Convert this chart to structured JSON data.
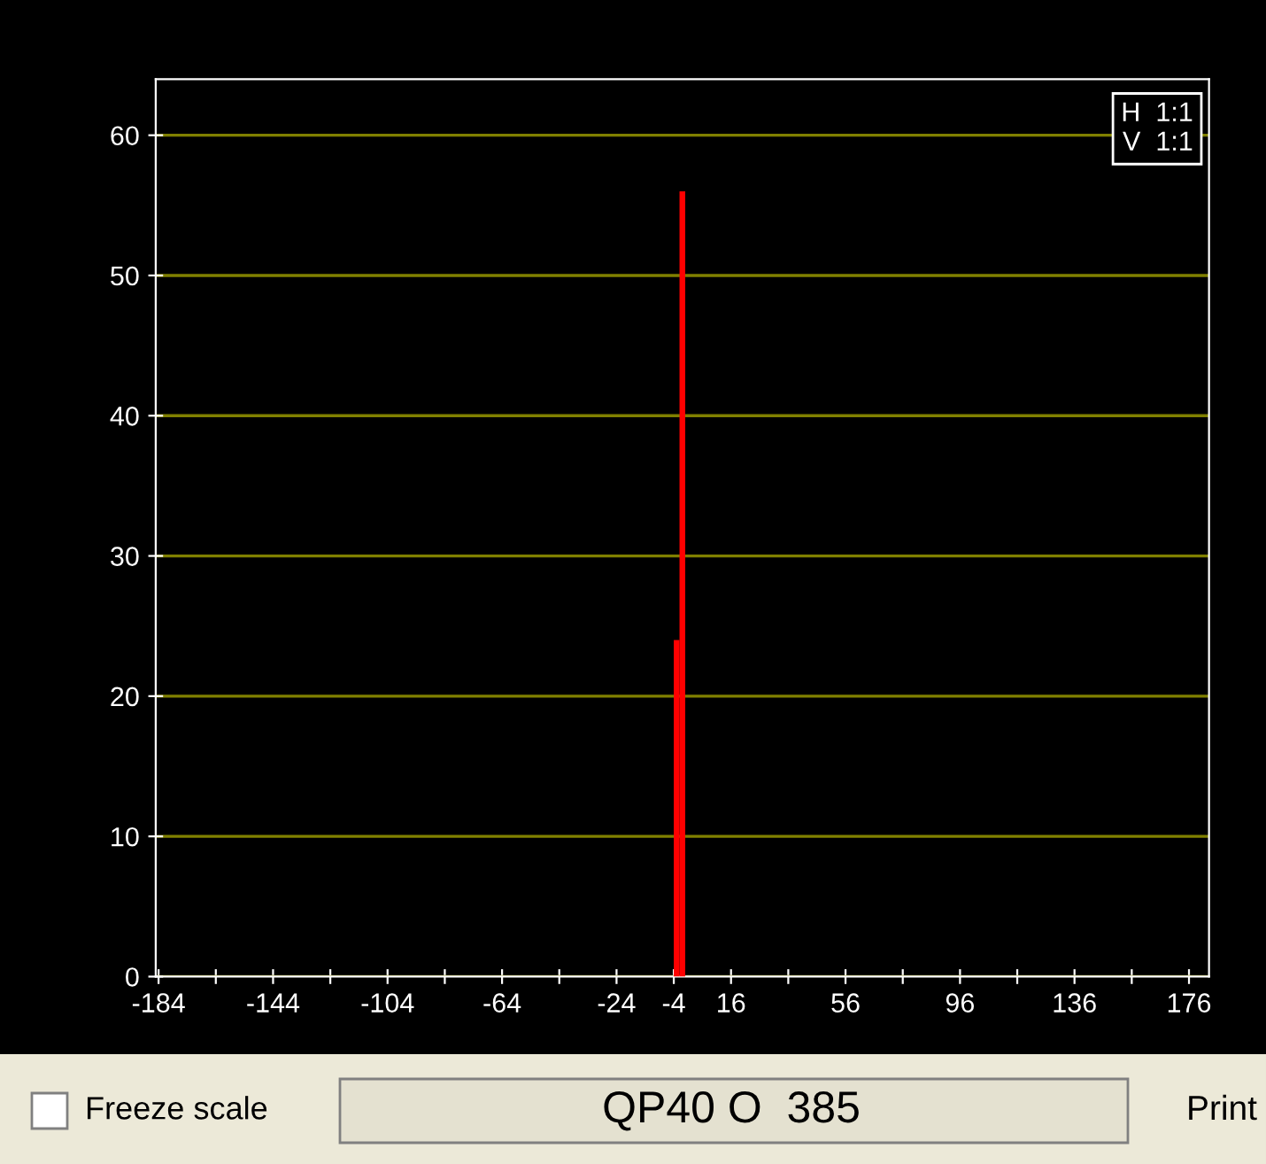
{
  "chart_data": {
    "type": "histogram",
    "bins": [
      -4,
      -2,
      0
    ],
    "values": [
      24,
      56
    ],
    "color": "#ff0000",
    "xlim": [
      -185,
      183
    ],
    "ylim": [
      0,
      64
    ],
    "xticks": [
      -184,
      {
        "value": -164,
        "label": null
      },
      -144,
      {
        "value": -124,
        "label": null
      },
      -104,
      {
        "value": -84,
        "label": null
      },
      -64,
      {
        "value": -44,
        "label": null
      },
      -24,
      -4,
      16,
      {
        "value": 36,
        "label": null
      },
      56,
      {
        "value": 76,
        "label": null
      },
      96,
      {
        "value": 116,
        "label": null
      },
      136,
      {
        "value": 156,
        "label": null
      },
      176
    ],
    "yticks": [
      0,
      10,
      20,
      30,
      40,
      50,
      60
    ],
    "grid": "y",
    "annotations": [
      "H  1:1\nV  1:1",
      "Freeze scale",
      "QP40 O  385",
      "Print"
    ]
  }
}
